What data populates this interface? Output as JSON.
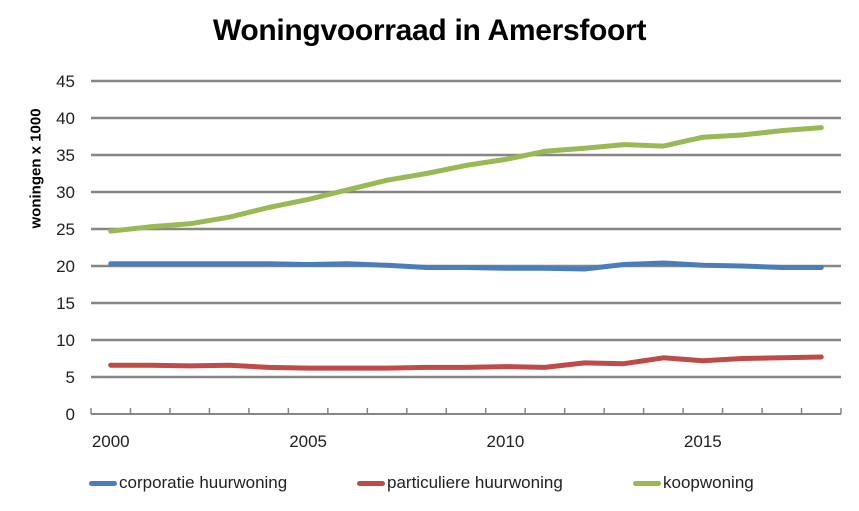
{
  "chart_data": {
    "type": "line",
    "title": "Woningvoorraad in Amersfoort",
    "xlabel": "",
    "ylabel": "woningen x 1000",
    "ylim": [
      0,
      45
    ],
    "yticks": [
      0,
      5,
      10,
      15,
      20,
      25,
      30,
      35,
      40,
      45
    ],
    "xtick_labels": [
      "2000",
      "2005",
      "2010",
      "2015"
    ],
    "grid": true,
    "legend_position": "bottom",
    "x": [
      2000,
      2001,
      2002,
      2003,
      2004,
      2005,
      2006,
      2007,
      2008,
      2009,
      2010,
      2011,
      2012,
      2013,
      2014,
      2015,
      2016,
      2017,
      2018
    ],
    "series": [
      {
        "name": "corporatie huurwoning",
        "color": "#4a7ebb",
        "values": [
          20.3,
          20.3,
          20.3,
          20.3,
          20.3,
          20.2,
          20.3,
          20.1,
          19.8,
          19.8,
          19.7,
          19.7,
          19.6,
          20.2,
          20.4,
          20.1,
          20.0,
          19.8,
          19.8
        ]
      },
      {
        "name": "particuliere huurwoning",
        "color": "#be4b48",
        "values": [
          6.6,
          6.6,
          6.5,
          6.6,
          6.3,
          6.2,
          6.2,
          6.2,
          6.3,
          6.3,
          6.4,
          6.3,
          6.9,
          6.8,
          7.6,
          7.2,
          7.5,
          7.6,
          7.7
        ]
      },
      {
        "name": "koopwoning",
        "color": "#98b954",
        "values": [
          24.7,
          25.3,
          25.7,
          26.6,
          27.9,
          29.0,
          30.3,
          31.6,
          32.5,
          33.6,
          34.4,
          35.5,
          35.9,
          36.4,
          36.2,
          37.4,
          37.7,
          38.3,
          38.7
        ]
      }
    ]
  },
  "legend": {
    "items": [
      {
        "label": "corporatie huurwoning",
        "color": "#4a7ebb"
      },
      {
        "label": "particuliere huurwoning",
        "color": "#be4b48"
      },
      {
        "label": "koopwoning",
        "color": "#98b954"
      }
    ]
  },
  "colors": {
    "gridline": "#868686",
    "axis": "#868686"
  }
}
